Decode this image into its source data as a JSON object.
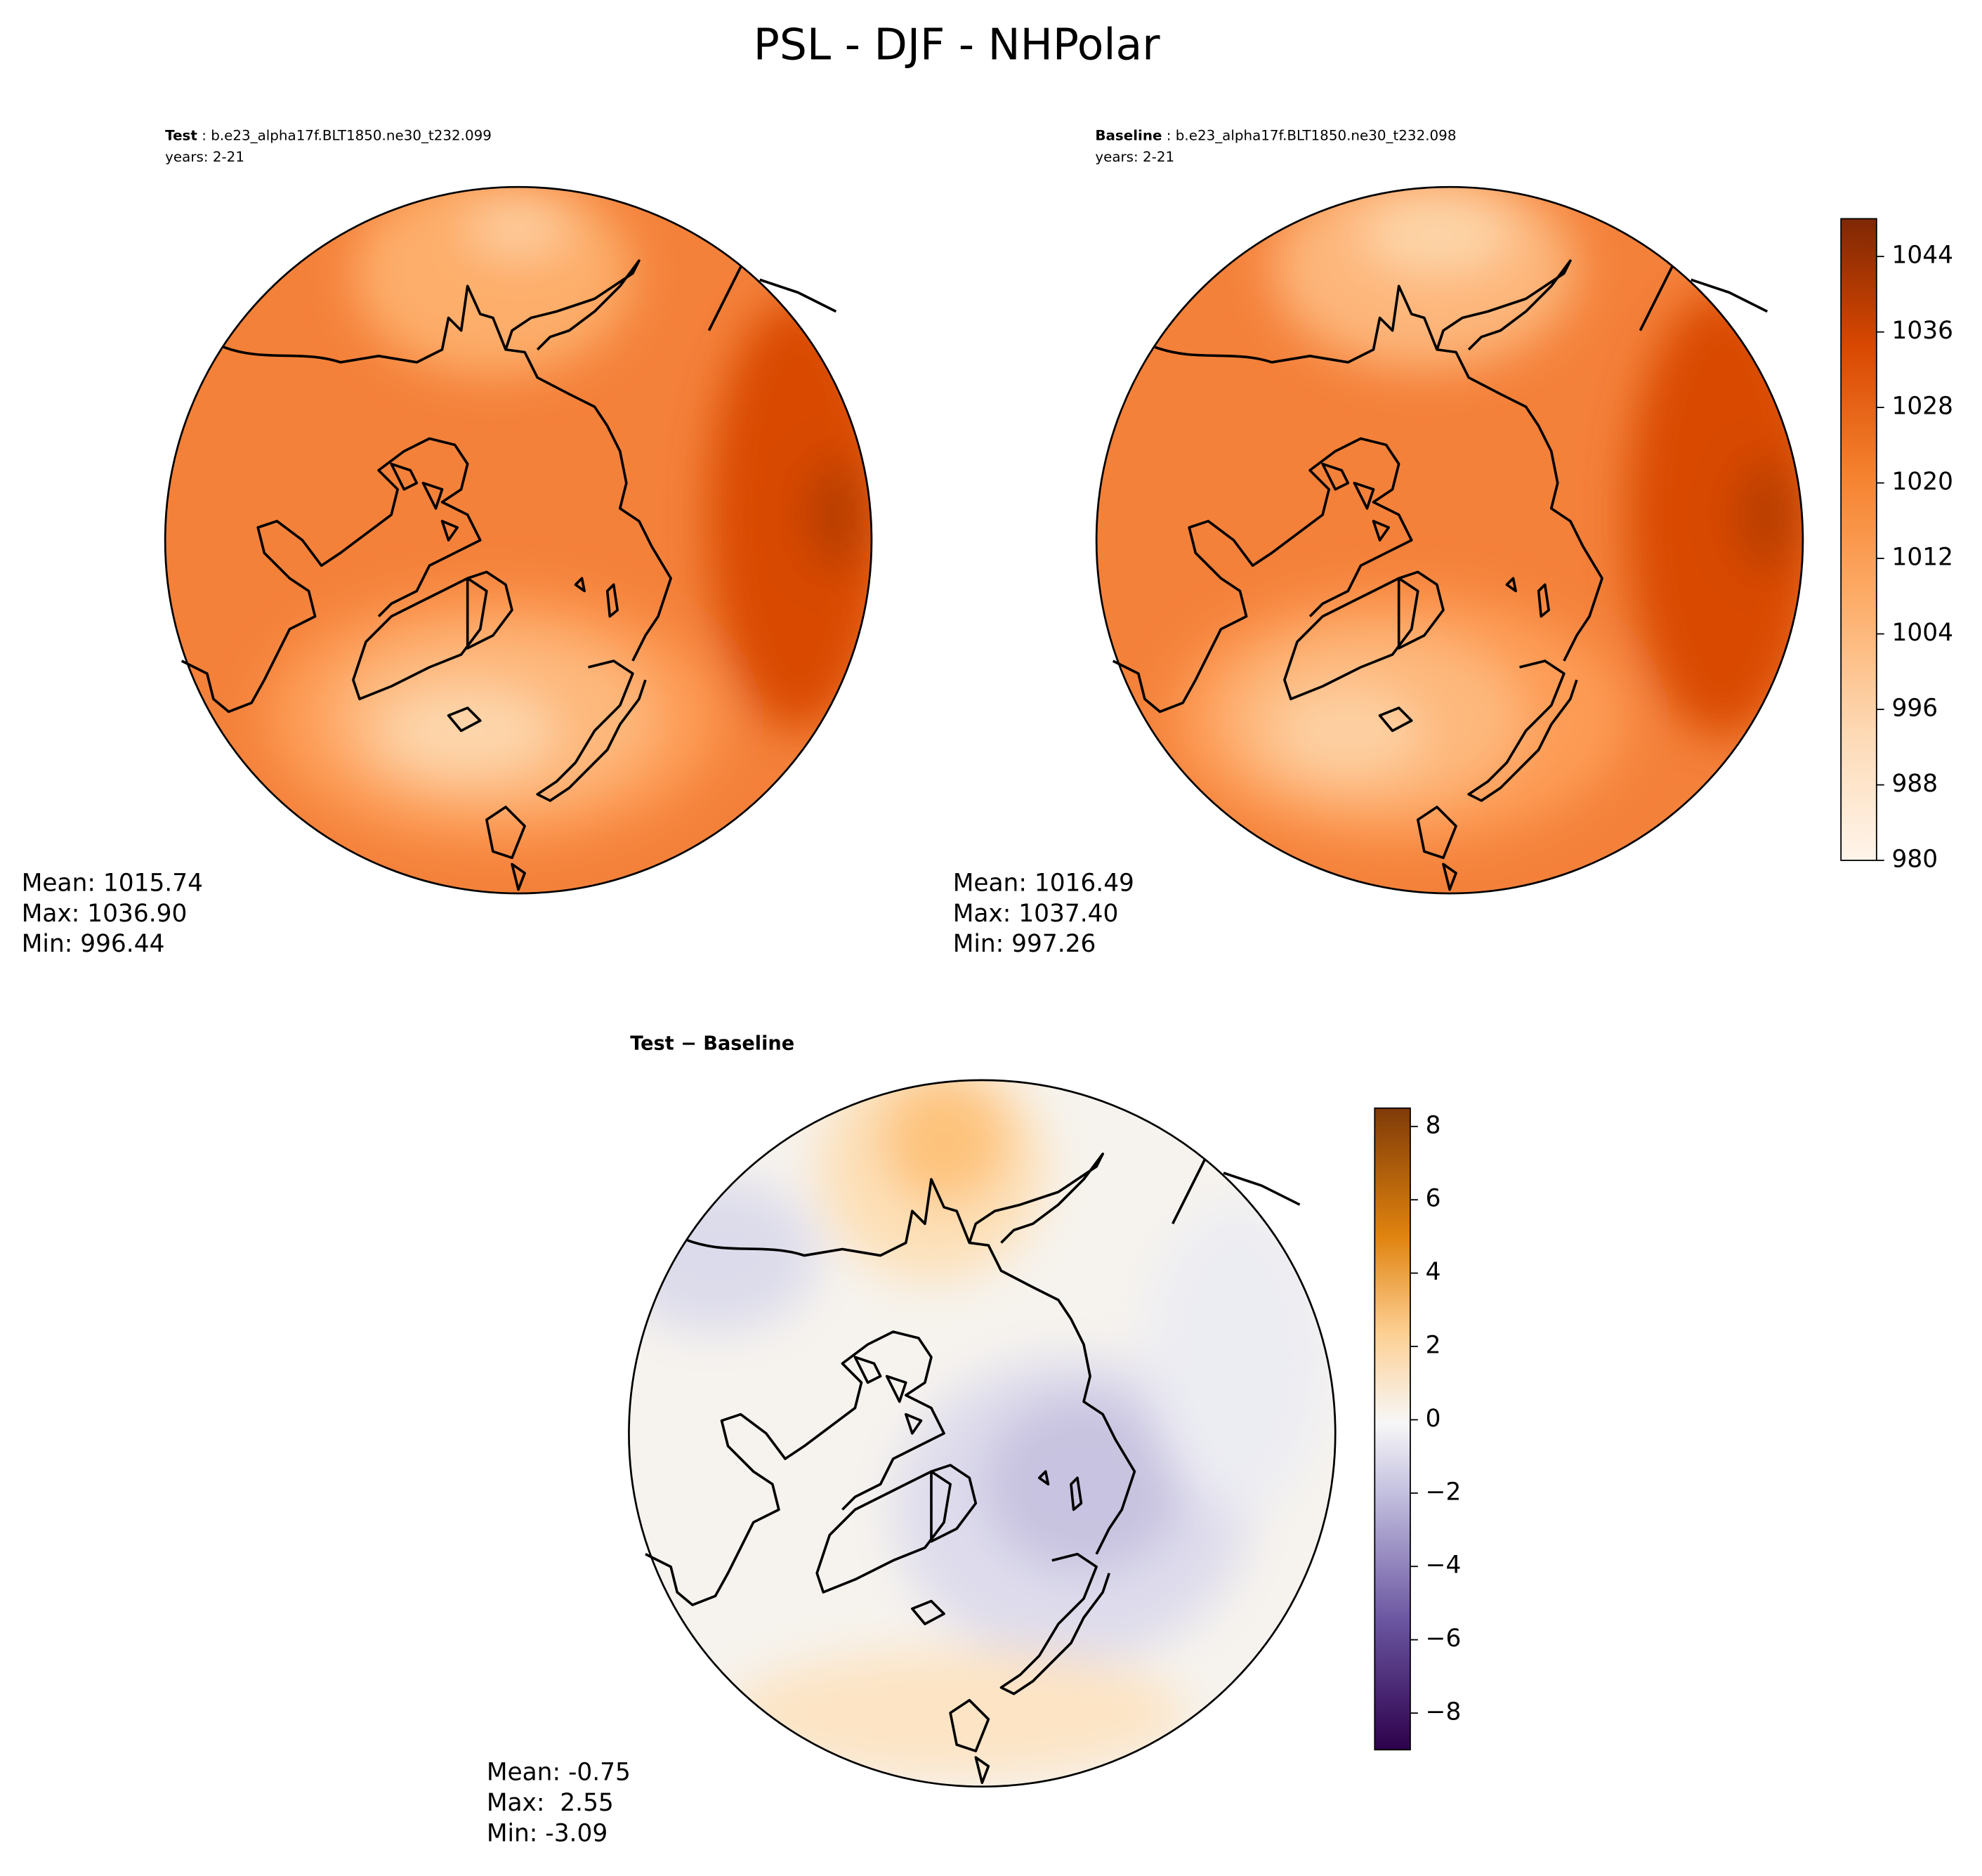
{
  "title": "PSL - DJF - NHPolar",
  "panels": [
    {
      "label": "Test",
      "case": " : b.e23_alpha17f.BLT1850.ne30_t232.099",
      "years": "years: 2-21",
      "stats": [
        "Mean: 1015.74",
        "Max: 1036.90",
        "Min: 996.44"
      ]
    },
    {
      "label": "Baseline",
      "case": " : b.e23_alpha17f.BLT1850.ne30_t232.098",
      "years": "years: 2-21",
      "stats": [
        "Mean: 1016.49",
        "Max: 1037.40",
        "Min: 997.26"
      ]
    },
    {
      "label": "Test − Baseline",
      "stats": [
        "Mean: -0.75",
        "Max:  2.55",
        "Min: -3.09"
      ]
    }
  ],
  "colorbars": [
    {
      "lim": [
        980,
        1048
      ],
      "ticks": [
        980,
        988,
        996,
        1004,
        1012,
        1020,
        1028,
        1036,
        1044
      ]
    },
    {
      "lim": [
        -9,
        8.5
      ],
      "ticks": [
        {
          "value": -8,
          "label": "−8"
        },
        {
          "value": -6,
          "label": "−6"
        },
        {
          "value": -4,
          "label": "−4"
        },
        {
          "value": -2,
          "label": "−2"
        },
        0,
        2,
        4,
        6,
        8
      ]
    }
  ]
}
